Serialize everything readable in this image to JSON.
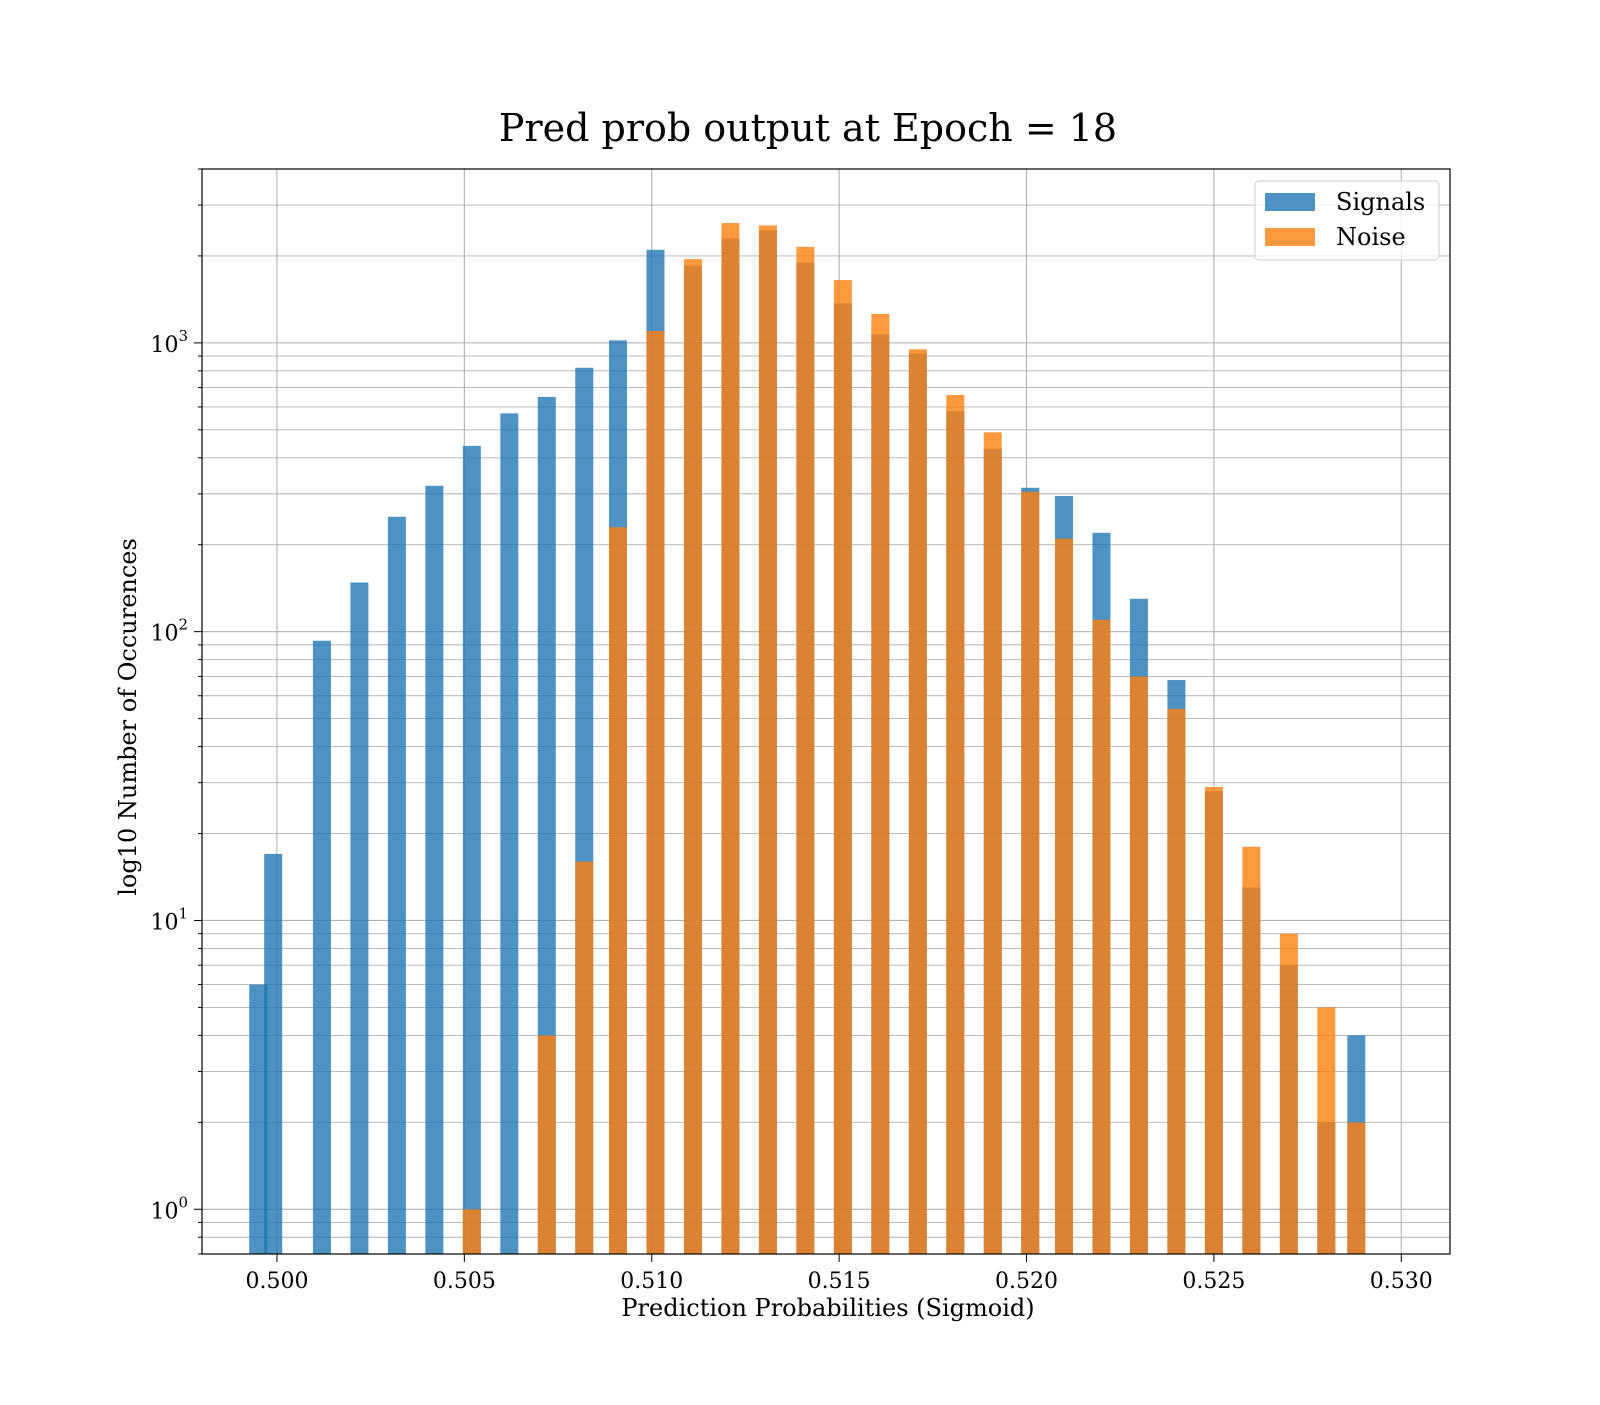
{
  "chart_data": {
    "type": "bar",
    "title": "Pred prob output at Epoch = 18",
    "xlabel": "Prediction Probabilities (Sigmoid)",
    "ylabel": "log10 Number of Occurences",
    "yscale": "log",
    "xlim": [
      0.498,
      0.5313
    ],
    "ylim": [
      0.7,
      4000
    ],
    "grid": true,
    "legend_position": "top-right",
    "x_ticks": [
      "0.500",
      "0.505",
      "0.510",
      "0.515",
      "0.520",
      "0.525",
      "0.530"
    ],
    "y_ticks": [
      {
        "base": "10",
        "exp": "0",
        "value": 1
      },
      {
        "base": "10",
        "exp": "1",
        "value": 10
      },
      {
        "base": "10",
        "exp": "2",
        "value": 100
      },
      {
        "base": "10",
        "exp": "3",
        "value": 1000
      }
    ],
    "series": [
      {
        "name": "Signals",
        "color": "#1f77b4",
        "opacity": 0.8,
        "points": [
          {
            "x": 0.4995,
            "y": 6
          },
          {
            "x": 0.4999,
            "y": 17
          },
          {
            "x": 0.5012,
            "y": 93
          },
          {
            "x": 0.5022,
            "y": 148
          },
          {
            "x": 0.5032,
            "y": 250
          },
          {
            "x": 0.5042,
            "y": 320
          },
          {
            "x": 0.5052,
            "y": 440
          },
          {
            "x": 0.5062,
            "y": 570
          },
          {
            "x": 0.5072,
            "y": 650
          },
          {
            "x": 0.5082,
            "y": 820
          },
          {
            "x": 0.5091,
            "y": 1020
          },
          {
            "x": 0.5101,
            "y": 2100
          },
          {
            "x": 0.5111,
            "y": 1850
          },
          {
            "x": 0.5121,
            "y": 2300
          },
          {
            "x": 0.5131,
            "y": 2450
          },
          {
            "x": 0.5141,
            "y": 1900
          },
          {
            "x": 0.5151,
            "y": 1370
          },
          {
            "x": 0.5161,
            "y": 1070
          },
          {
            "x": 0.5171,
            "y": 920
          },
          {
            "x": 0.5181,
            "y": 580
          },
          {
            "x": 0.5191,
            "y": 430
          },
          {
            "x": 0.5201,
            "y": 315
          },
          {
            "x": 0.521,
            "y": 295
          },
          {
            "x": 0.522,
            "y": 220
          },
          {
            "x": 0.523,
            "y": 130
          },
          {
            "x": 0.524,
            "y": 68
          },
          {
            "x": 0.525,
            "y": 28
          },
          {
            "x": 0.526,
            "y": 13
          },
          {
            "x": 0.527,
            "y": 7
          },
          {
            "x": 0.528,
            "y": 2
          },
          {
            "x": 0.5288,
            "y": 4
          }
        ]
      },
      {
        "name": "Noise",
        "color": "#ff7f0e",
        "opacity": 0.8,
        "points": [
          {
            "x": 0.5052,
            "y": 1
          },
          {
            "x": 0.5072,
            "y": 4
          },
          {
            "x": 0.5082,
            "y": 16
          },
          {
            "x": 0.5091,
            "y": 230
          },
          {
            "x": 0.5101,
            "y": 1100
          },
          {
            "x": 0.5111,
            "y": 1950
          },
          {
            "x": 0.5121,
            "y": 2600
          },
          {
            "x": 0.5131,
            "y": 2550
          },
          {
            "x": 0.5141,
            "y": 2150
          },
          {
            "x": 0.5151,
            "y": 1650
          },
          {
            "x": 0.5161,
            "y": 1260
          },
          {
            "x": 0.5171,
            "y": 950
          },
          {
            "x": 0.5181,
            "y": 660
          },
          {
            "x": 0.5191,
            "y": 490
          },
          {
            "x": 0.5201,
            "y": 305
          },
          {
            "x": 0.521,
            "y": 210
          },
          {
            "x": 0.522,
            "y": 110
          },
          {
            "x": 0.523,
            "y": 70
          },
          {
            "x": 0.524,
            "y": 54
          },
          {
            "x": 0.525,
            "y": 29
          },
          {
            "x": 0.526,
            "y": 18
          },
          {
            "x": 0.527,
            "y": 9
          },
          {
            "x": 0.528,
            "y": 5
          },
          {
            "x": 0.5288,
            "y": 2
          }
        ]
      }
    ]
  }
}
